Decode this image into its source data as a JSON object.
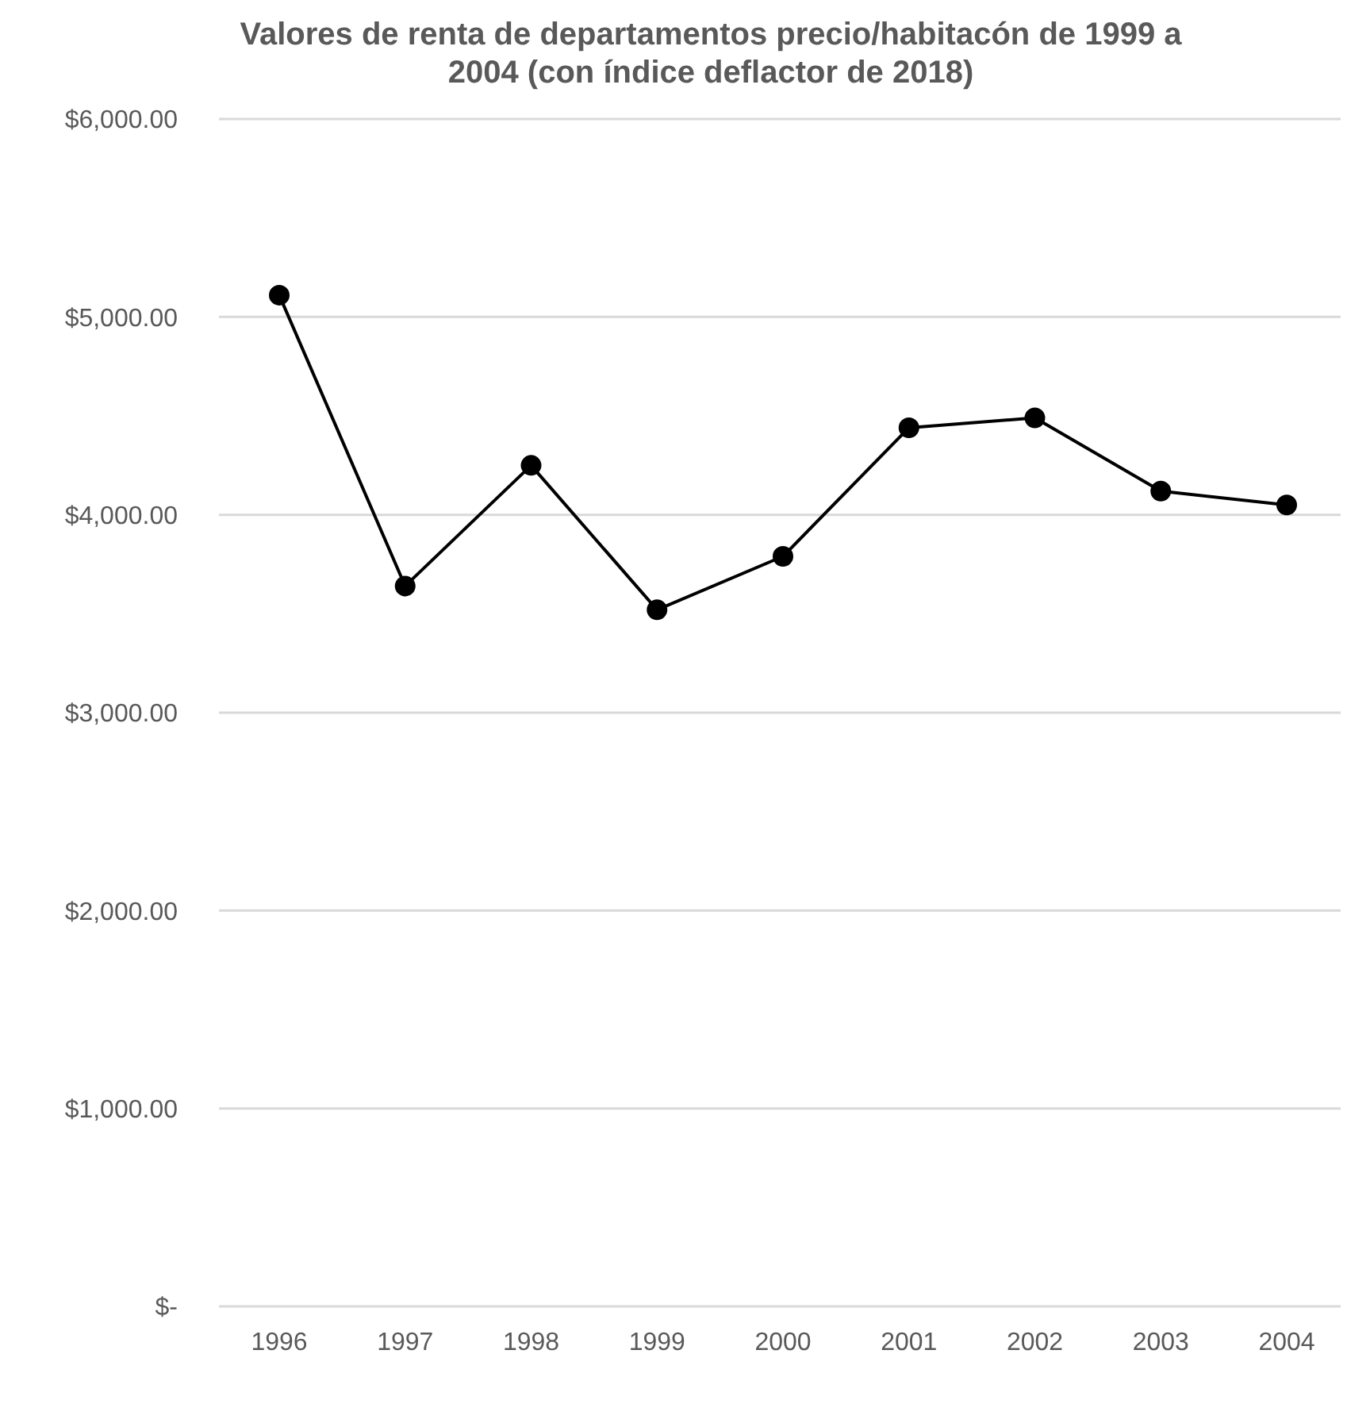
{
  "chart_data": {
    "type": "line",
    "title": "Valores de renta de departamentos precio/habitacón de 1999 a 2004 (con índice deflactor de 2018)",
    "categories": [
      "1996",
      "1997",
      "1998",
      "1999",
      "2000",
      "2001",
      "2002",
      "2003",
      "2004"
    ],
    "series": [
      {
        "color": "#000000",
        "values": [
          5110,
          3640,
          4250,
          3520,
          3790,
          4440,
          4490,
          4120,
          4050
        ]
      }
    ],
    "ylim": [
      0,
      6000
    ],
    "yticks": [
      {
        "value": 0,
        "label": "$-"
      },
      {
        "value": 1000,
        "label": "$1,000.00"
      },
      {
        "value": 2000,
        "label": "$2,000.00"
      },
      {
        "value": 3000,
        "label": "$3,000.00"
      },
      {
        "value": 4000,
        "label": "$4,000.00"
      },
      {
        "value": 5000,
        "label": "$5,000.00"
      },
      {
        "value": 6000,
        "label": "$6,000.00"
      }
    ],
    "grid": "y",
    "marker": "circle",
    "line_style": "solid"
  }
}
